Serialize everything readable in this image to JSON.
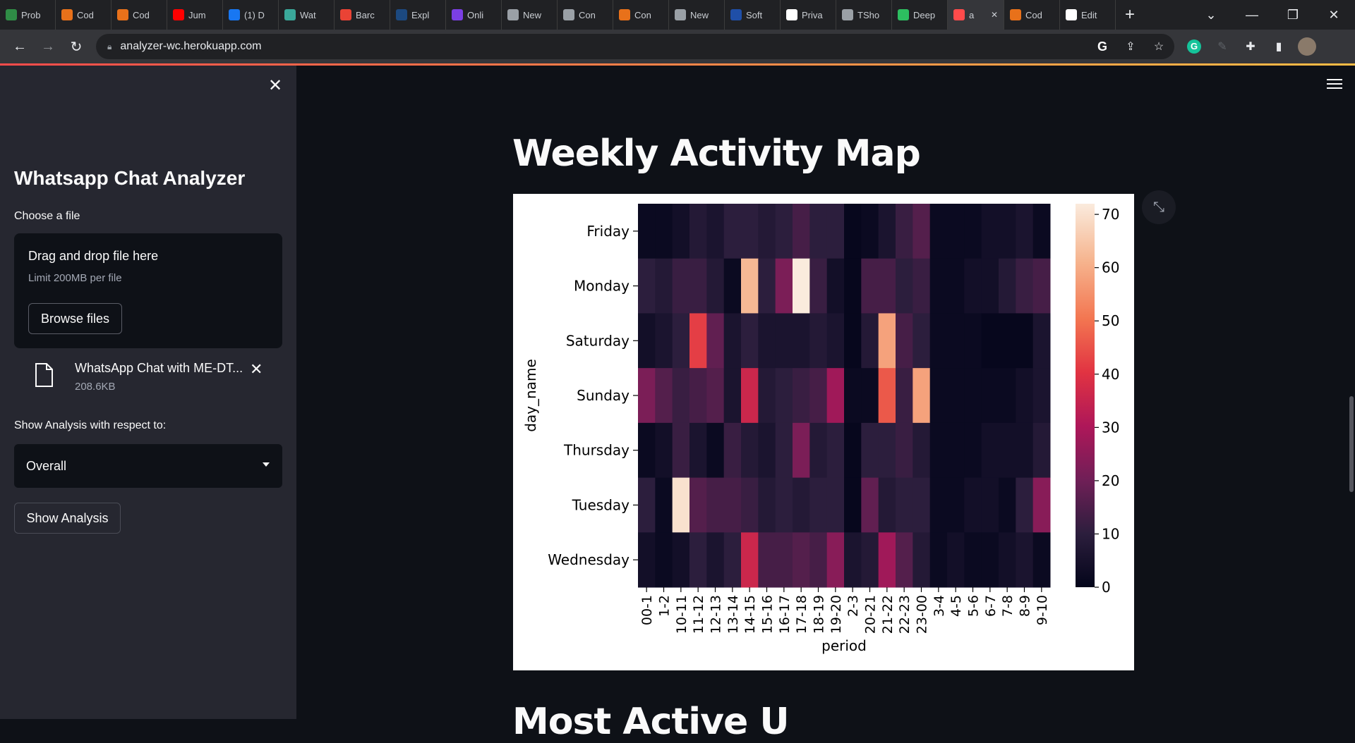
{
  "browser": {
    "tabs": [
      {
        "label": "Prob",
        "icon": "gfg-icon",
        "color": "#2f8d46"
      },
      {
        "label": "Cod",
        "icon": "codechef-icon",
        "color": "#e8711a"
      },
      {
        "label": "Cod",
        "icon": "codechef-icon",
        "color": "#e8711a"
      },
      {
        "label": "Jum",
        "icon": "youtube-icon",
        "color": "#ff0000"
      },
      {
        "label": "(1) D",
        "icon": "facebook-icon",
        "color": "#1877f2"
      },
      {
        "label": "Wat",
        "icon": "watch-icon",
        "color": "#3aa89a"
      },
      {
        "label": "Barc",
        "icon": "gmail-icon",
        "color": "#ea4335"
      },
      {
        "label": "Expl",
        "icon": "unstop-icon",
        "color": "#1c4980"
      },
      {
        "label": "Onli",
        "icon": "online-icon",
        "color": "#7b3fe4"
      },
      {
        "label": "New",
        "icon": "chrome-icon",
        "color": "#9aa0a6"
      },
      {
        "label": "Con",
        "icon": "contest-icon",
        "color": "#9aa0a6"
      },
      {
        "label": "Con",
        "icon": "codechef-icon",
        "color": "#e8711a"
      },
      {
        "label": "New",
        "icon": "chrome-icon",
        "color": "#9aa0a6"
      },
      {
        "label": "Soft",
        "icon": "soft-icon",
        "color": "#1f4fa8"
      },
      {
        "label": "Priva",
        "icon": "privacy-icon",
        "color": "#ffffff"
      },
      {
        "label": "TSho",
        "icon": "globe-icon",
        "color": "#9aa0a6"
      },
      {
        "label": "Deep",
        "icon": "deepnote-icon",
        "color": "#2dbe60"
      },
      {
        "label": "a",
        "icon": "streamlit-icon",
        "color": "#ff4b4b",
        "active": true
      },
      {
        "label": "Cod",
        "icon": "codechef-icon",
        "color": "#e8711a"
      },
      {
        "label": "Edit",
        "icon": "github-icon",
        "color": "#ffffff"
      }
    ],
    "url": "analyzer-wc.herokuapp.com"
  },
  "sidebar": {
    "title": "Whatsapp Chat Analyzer",
    "choose_label": "Choose a file",
    "dropzone_main": "Drag and drop file here",
    "dropzone_limit": "Limit 200MB per file",
    "browse_label": "Browse files",
    "file_name": "WhatsApp Chat with ME-DT...",
    "file_size": "208.6KB",
    "analysis_label": "Show Analysis with respect to:",
    "selected_user": "Overall",
    "show_analysis_label": "Show Analysis"
  },
  "main": {
    "heading": "Weekly Activity Map",
    "next_heading": "Most Active U"
  },
  "chart_data": {
    "type": "heatmap",
    "title": "",
    "xlabel": "period",
    "ylabel": "day_name",
    "x": [
      "00-1",
      "1-2",
      "10-11",
      "11-12",
      "12-13",
      "13-14",
      "14-15",
      "15-16",
      "16-17",
      "17-18",
      "18-19",
      "19-20",
      "2-3",
      "20-21",
      "21-22",
      "22-23",
      "23-00",
      "3-4",
      "4-5",
      "5-6",
      "6-7",
      "7-8",
      "8-9",
      "9-10"
    ],
    "y": [
      "Friday",
      "Monday",
      "Saturday",
      "Sunday",
      "Thursday",
      "Tuesday",
      "Wednesday"
    ],
    "values": [
      [
        2,
        2,
        4,
        8,
        6,
        10,
        10,
        8,
        10,
        14,
        10,
        10,
        1,
        2,
        6,
        12,
        16,
        2,
        2,
        2,
        4,
        4,
        6,
        2
      ],
      [
        10,
        8,
        12,
        12,
        8,
        2,
        62,
        10,
        22,
        72,
        12,
        4,
        1,
        14,
        14,
        10,
        12,
        2,
        2,
        4,
        4,
        8,
        12,
        14
      ],
      [
        4,
        6,
        10,
        42,
        18,
        6,
        10,
        6,
        6,
        6,
        8,
        6,
        1,
        8,
        58,
        14,
        10,
        2,
        2,
        2,
        1,
        1,
        1,
        6
      ],
      [
        22,
        16,
        12,
        14,
        16,
        6,
        36,
        8,
        10,
        12,
        14,
        28,
        2,
        2,
        46,
        12,
        58,
        2,
        2,
        2,
        2,
        2,
        4,
        6
      ],
      [
        2,
        4,
        12,
        6,
        2,
        12,
        8,
        6,
        10,
        22,
        8,
        10,
        1,
        10,
        10,
        12,
        8,
        2,
        2,
        2,
        4,
        4,
        4,
        8
      ],
      [
        10,
        2,
        70,
        16,
        14,
        14,
        12,
        8,
        10,
        8,
        10,
        10,
        1,
        18,
        8,
        10,
        10,
        2,
        2,
        4,
        4,
        2,
        10,
        24
      ],
      [
        4,
        2,
        4,
        10,
        6,
        10,
        36,
        14,
        14,
        16,
        14,
        24,
        6,
        8,
        28,
        16,
        8,
        2,
        4,
        2,
        2,
        4,
        6,
        2
      ]
    ],
    "vmin": 0,
    "vmax": 72,
    "colorbar_ticks": [
      0,
      10,
      20,
      30,
      40,
      50,
      60,
      70
    ],
    "colormap": "rocket"
  }
}
